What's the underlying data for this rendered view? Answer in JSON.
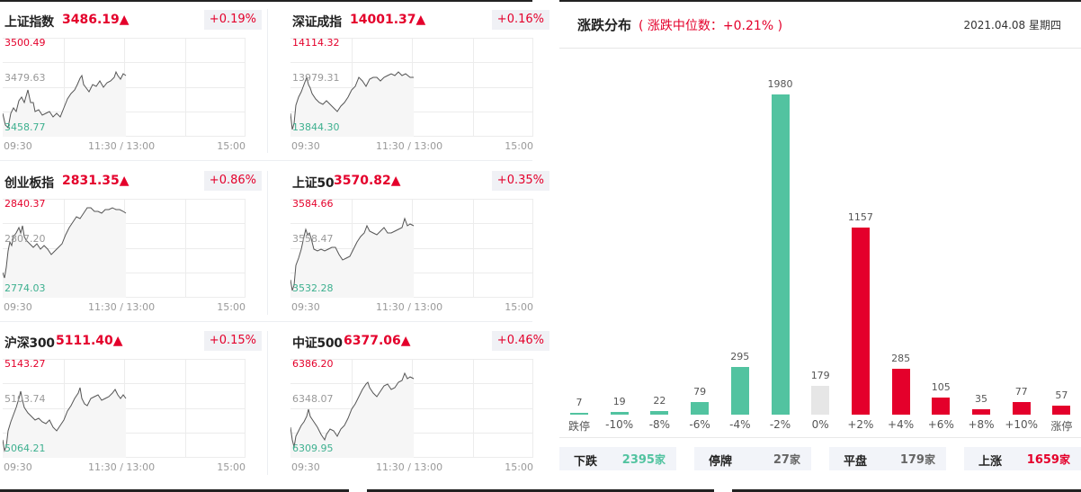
{
  "indices": [
    {
      "name": "上证指数",
      "value": "3486.19",
      "arrow": "▲",
      "change": "+0.19%",
      "high": "3500.49",
      "mid": "3479.63",
      "low": "3458.77",
      "line": [
        [
          0,
          84
        ],
        [
          3,
          97
        ],
        [
          6,
          100
        ],
        [
          9,
          84
        ],
        [
          12,
          78
        ],
        [
          15,
          82
        ],
        [
          18,
          70
        ],
        [
          21,
          66
        ],
        [
          24,
          72
        ],
        [
          28,
          58
        ],
        [
          31,
          72
        ],
        [
          34,
          72
        ],
        [
          36,
          82
        ],
        [
          40,
          80
        ],
        [
          44,
          86
        ],
        [
          48,
          84
        ],
        [
          52,
          82
        ],
        [
          56,
          88
        ],
        [
          60,
          84
        ],
        [
          64,
          88
        ],
        [
          68,
          78
        ],
        [
          72,
          68
        ],
        [
          76,
          62
        ],
        [
          80,
          58
        ],
        [
          83,
          52
        ],
        [
          86,
          45
        ],
        [
          88,
          42
        ],
        [
          90,
          52
        ],
        [
          93,
          56
        ],
        [
          96,
          60
        ],
        [
          100,
          52
        ],
        [
          104,
          54
        ],
        [
          108,
          48
        ],
        [
          112,
          55
        ],
        [
          116,
          50
        ],
        [
          120,
          48
        ],
        [
          124,
          44
        ],
        [
          126,
          38
        ],
        [
          128,
          42
        ],
        [
          131,
          46
        ],
        [
          134,
          40
        ],
        [
          137,
          42
        ]
      ]
    },
    {
      "name": "深证成指",
      "value": "14001.37",
      "arrow": "▲",
      "change": "+0.16%",
      "high": "14114.32",
      "mid": "13979.31",
      "low": "13844.30",
      "line": [
        [
          0,
          84
        ],
        [
          2,
          102
        ],
        [
          4,
          95
        ],
        [
          6,
          75
        ],
        [
          9,
          66
        ],
        [
          12,
          60
        ],
        [
          15,
          52
        ],
        [
          18,
          44
        ],
        [
          20,
          52
        ],
        [
          22,
          56
        ],
        [
          24,
          62
        ],
        [
          28,
          68
        ],
        [
          32,
          72
        ],
        [
          36,
          74
        ],
        [
          40,
          70
        ],
        [
          44,
          74
        ],
        [
          48,
          78
        ],
        [
          52,
          82
        ],
        [
          56,
          76
        ],
        [
          60,
          72
        ],
        [
          64,
          66
        ],
        [
          68,
          58
        ],
        [
          72,
          54
        ],
        [
          76,
          44
        ],
        [
          80,
          48
        ],
        [
          84,
          54
        ],
        [
          88,
          46
        ],
        [
          92,
          44
        ],
        [
          96,
          44
        ],
        [
          100,
          48
        ],
        [
          104,
          44
        ],
        [
          108,
          42
        ],
        [
          112,
          40
        ],
        [
          116,
          42
        ],
        [
          120,
          38
        ],
        [
          124,
          42
        ],
        [
          128,
          40
        ],
        [
          133,
          44
        ],
        [
          137,
          44
        ]
      ]
    },
    {
      "name": "创业板指",
      "value": "2831.35",
      "arrow": "▲",
      "change": "+0.86%",
      "high": "2840.37",
      "mid": "2807.20",
      "low": "2774.03",
      "line": [
        [
          0,
          82
        ],
        [
          2,
          88
        ],
        [
          4,
          76
        ],
        [
          6,
          58
        ],
        [
          8,
          48
        ],
        [
          10,
          52
        ],
        [
          12,
          42
        ],
        [
          15,
          38
        ],
        [
          18,
          32
        ],
        [
          20,
          38
        ],
        [
          22,
          30
        ],
        [
          24,
          42
        ],
        [
          26,
          46
        ],
        [
          30,
          50
        ],
        [
          34,
          54
        ],
        [
          38,
          50
        ],
        [
          42,
          56
        ],
        [
          46,
          52
        ],
        [
          50,
          56
        ],
        [
          54,
          62
        ],
        [
          58,
          58
        ],
        [
          62,
          54
        ],
        [
          66,
          50
        ],
        [
          70,
          40
        ],
        [
          74,
          32
        ],
        [
          78,
          26
        ],
        [
          82,
          20
        ],
        [
          86,
          22
        ],
        [
          90,
          16
        ],
        [
          94,
          10
        ],
        [
          98,
          10
        ],
        [
          102,
          14
        ],
        [
          106,
          14
        ],
        [
          110,
          16
        ],
        [
          114,
          12
        ],
        [
          118,
          12
        ],
        [
          122,
          10
        ],
        [
          126,
          12
        ],
        [
          130,
          12
        ],
        [
          134,
          14
        ],
        [
          137,
          16
        ]
      ]
    },
    {
      "name": "上证50",
      "value": "3570.82",
      "arrow": "▲",
      "change": "+0.35%",
      "high": "3584.66",
      "mid": "3558.47",
      "low": "3532.28",
      "line": [
        [
          0,
          90
        ],
        [
          2,
          102
        ],
        [
          4,
          96
        ],
        [
          6,
          74
        ],
        [
          9,
          66
        ],
        [
          12,
          56
        ],
        [
          15,
          42
        ],
        [
          17,
          34
        ],
        [
          19,
          40
        ],
        [
          21,
          38
        ],
        [
          23,
          44
        ],
        [
          26,
          56
        ],
        [
          30,
          58
        ],
        [
          34,
          56
        ],
        [
          38,
          58
        ],
        [
          42,
          56
        ],
        [
          46,
          54
        ],
        [
          50,
          54
        ],
        [
          54,
          62
        ],
        [
          58,
          68
        ],
        [
          62,
          66
        ],
        [
          66,
          64
        ],
        [
          70,
          56
        ],
        [
          74,
          48
        ],
        [
          78,
          42
        ],
        [
          82,
          38
        ],
        [
          85,
          30
        ],
        [
          88,
          36
        ],
        [
          92,
          38
        ],
        [
          96,
          40
        ],
        [
          100,
          36
        ],
        [
          104,
          32
        ],
        [
          108,
          38
        ],
        [
          112,
          38
        ],
        [
          116,
          36
        ],
        [
          120,
          34
        ],
        [
          124,
          32
        ],
        [
          127,
          22
        ],
        [
          130,
          30
        ],
        [
          133,
          28
        ],
        [
          137,
          30
        ]
      ]
    },
    {
      "name": "沪深300",
      "value": "5111.40",
      "arrow": "▲",
      "change": "+0.15%",
      "high": "5143.27",
      "mid": "5103.74",
      "low": "5064.21",
      "line": [
        [
          0,
          90
        ],
        [
          2,
          102
        ],
        [
          4,
          97
        ],
        [
          6,
          80
        ],
        [
          9,
          70
        ],
        [
          12,
          62
        ],
        [
          15,
          54
        ],
        [
          18,
          44
        ],
        [
          20,
          36
        ],
        [
          22,
          46
        ],
        [
          24,
          54
        ],
        [
          28,
          60
        ],
        [
          32,
          64
        ],
        [
          36,
          68
        ],
        [
          40,
          66
        ],
        [
          44,
          70
        ],
        [
          48,
          72
        ],
        [
          52,
          68
        ],
        [
          56,
          76
        ],
        [
          60,
          80
        ],
        [
          64,
          74
        ],
        [
          68,
          68
        ],
        [
          72,
          58
        ],
        [
          76,
          52
        ],
        [
          80,
          44
        ],
        [
          84,
          38
        ],
        [
          86,
          32
        ],
        [
          88,
          44
        ],
        [
          91,
          50
        ],
        [
          94,
          52
        ],
        [
          98,
          44
        ],
        [
          102,
          42
        ],
        [
          106,
          40
        ],
        [
          110,
          46
        ],
        [
          114,
          44
        ],
        [
          118,
          42
        ],
        [
          122,
          38
        ],
        [
          125,
          34
        ],
        [
          128,
          40
        ],
        [
          131,
          44
        ],
        [
          134,
          40
        ],
        [
          137,
          44
        ]
      ]
    },
    {
      "name": "中证500",
      "value": "6377.06",
      "arrow": "▲",
      "change": "+0.46%",
      "high": "6386.20",
      "mid": "6348.07",
      "low": "6309.95",
      "line": [
        [
          0,
          76
        ],
        [
          2,
          90
        ],
        [
          4,
          98
        ],
        [
          6,
          86
        ],
        [
          9,
          80
        ],
        [
          12,
          74
        ],
        [
          15,
          70
        ],
        [
          18,
          64
        ],
        [
          20,
          56
        ],
        [
          22,
          64
        ],
        [
          26,
          70
        ],
        [
          30,
          76
        ],
        [
          34,
          84
        ],
        [
          38,
          90
        ],
        [
          40,
          84
        ],
        [
          44,
          78
        ],
        [
          48,
          80
        ],
        [
          52,
          86
        ],
        [
          56,
          78
        ],
        [
          60,
          74
        ],
        [
          64,
          66
        ],
        [
          68,
          56
        ],
        [
          72,
          50
        ],
        [
          76,
          42
        ],
        [
          80,
          34
        ],
        [
          84,
          28
        ],
        [
          86,
          26
        ],
        [
          88,
          32
        ],
        [
          92,
          38
        ],
        [
          96,
          42
        ],
        [
          100,
          36
        ],
        [
          104,
          30
        ],
        [
          108,
          28
        ],
        [
          112,
          34
        ],
        [
          116,
          32
        ],
        [
          120,
          26
        ],
        [
          124,
          24
        ],
        [
          127,
          16
        ],
        [
          130,
          22
        ],
        [
          133,
          20
        ],
        [
          137,
          22
        ]
      ]
    }
  ],
  "xaxis": {
    "start": "09:30",
    "mid": "11:30 / 13:00",
    "end": "15:00"
  },
  "distribution": {
    "title": "涨跌分布",
    "subtitle": "( 涨跌中位数：+0.21% )",
    "date": "2021.04.08 星期四",
    "colors": {
      "down": "#52c3a0",
      "flat": "#e6e6e6",
      "up": "#e4002b"
    },
    "stats": [
      {
        "label": "下跌",
        "count": "2395",
        "unit": "家",
        "color": "#52c3a0"
      },
      {
        "label": "停牌",
        "count": "27",
        "unit": "家",
        "color": "#666666"
      },
      {
        "label": "平盘",
        "count": "179",
        "unit": "家",
        "color": "#666666"
      },
      {
        "label": "上涨",
        "count": "1659",
        "unit": "家",
        "color": "#e4002b"
      }
    ]
  },
  "chart_data": {
    "type": "bar",
    "title": "涨跌分布",
    "subtitle": "涨跌中位数：+0.21%",
    "categories": [
      "跌停",
      "-10%",
      "-8%",
      "-6%",
      "-4%",
      "-2%",
      "0%",
      "+2%",
      "+4%",
      "+6%",
      "+8%",
      "+10%",
      "涨停"
    ],
    "values": [
      7,
      19,
      22,
      79,
      295,
      1980,
      179,
      1157,
      285,
      105,
      35,
      77,
      57
    ],
    "bar_colors": [
      "down",
      "down",
      "down",
      "down",
      "down",
      "down",
      "flat",
      "up",
      "up",
      "up",
      "up",
      "up",
      "up"
    ],
    "xlabel": "",
    "ylabel": "",
    "grid": false,
    "legend": "none"
  }
}
